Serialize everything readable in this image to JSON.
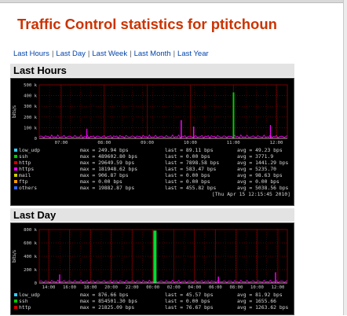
{
  "page": {
    "title": "Traffic Control statistics for ptitchoun"
  },
  "nav": {
    "links": [
      "Last Hours",
      "Last Day",
      "Last Week",
      "Last Month",
      "Last Year"
    ],
    "separator": "|"
  },
  "colors": {
    "title": "#cc3300",
    "link": "#0044aa",
    "section_bg": "#e3e3e3",
    "plot_bg": "#000000",
    "grid": "#7a0000",
    "axis_text": "#d0d0d0"
  },
  "sections": [
    {
      "heading": "Last Hours",
      "y_unit": "bits/s",
      "y_ticks": [
        "500 k",
        "400 k",
        "300 k",
        "200 k",
        "100 k",
        "0"
      ],
      "x_ticks": [
        "07:00",
        "08:00",
        "09:00",
        "10:00",
        "11:00",
        "12:00"
      ],
      "rows": [
        {
          "name": "low_udp",
          "color": "#33ccff",
          "max": "max =   249.94 bps",
          "last": "last =    89.11 bps",
          "avg": "avg =    49.23 bps"
        },
        {
          "name": "ssh",
          "color": "#00cc00",
          "max": "max = 489602.80 bps",
          "last": "last =     0.00 bps",
          "avg": "avg =  3771.9"
        },
        {
          "name": "http",
          "color": "#cc0000",
          "max": "max =  29649.59 bps",
          "last": "last =  7898.58 bps",
          "avg": "avg =  1441.29 bps"
        },
        {
          "name": "https",
          "color": "#ff00ff",
          "max": "max = 181948.62 bps",
          "last": "last =   583.47 bps",
          "avg": "avg =  5235.70"
        },
        {
          "name": "mail",
          "color": "#cccc00",
          "max": "max =   906.87 bps",
          "last": "last =     0.00 bps",
          "avg": "avg =    98.63 bps"
        },
        {
          "name": "ftp",
          "color": "#ff9900",
          "max": "max =     0.00 bps",
          "last": "last =     0.00 bps",
          "avg": "avg =     0.00 bps"
        },
        {
          "name": "others",
          "color": "#3366ff",
          "max": "max =  19882.87 bps",
          "last": "last =   455.82 bps",
          "avg": "avg =  5038.56 bps"
        }
      ],
      "timestamp": "[Thu Apr 15 12:15:45 2010]"
    },
    {
      "heading": "Last Day",
      "y_unit": "bits/s",
      "y_ticks": [
        "800 k",
        "600 k",
        "400 k",
        "200 k",
        "0"
      ],
      "x_ticks": [
        "14:00",
        "16:00",
        "18:00",
        "20:00",
        "22:00",
        "00:00",
        "02:00",
        "04:00",
        "06:00",
        "08:00",
        "10:00",
        "12:00"
      ],
      "rows": [
        {
          "name": "low_udp",
          "color": "#33ccff",
          "max": "max =   876.66 bps",
          "last": "last =    45.57 bps",
          "avg": "avg =    81.92 bps"
        },
        {
          "name": "ssh",
          "color": "#00cc00",
          "max": "max = 854501.30 bps",
          "last": "last =     0.00 bps",
          "avg": "avg =  1655.66"
        },
        {
          "name": "http",
          "color": "#cc0000",
          "max": "max =  21825.09 bps",
          "last": "last =    76.67 bps",
          "avg": "avg =  1263.62 bps"
        }
      ]
    }
  ]
}
